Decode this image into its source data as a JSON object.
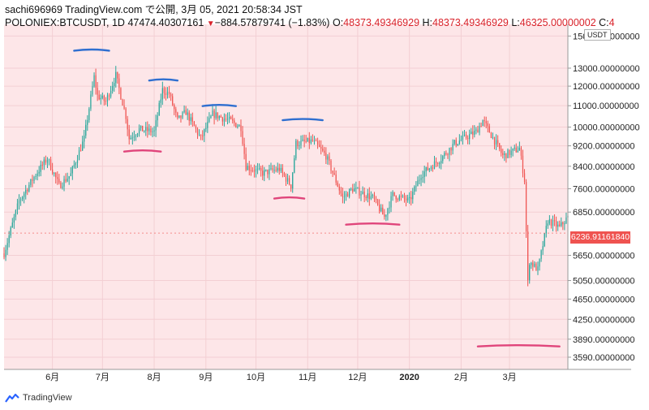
{
  "header": {
    "line1": "sachi696969 TradingView.com で公開, 3月 05, 2021 20:58:34 JST",
    "symbol": "POLONIEX:BTCUSDT, 1D",
    "last": "47474.40307161",
    "change": "−884.57879741 (−1.83%)",
    "open_label": "O:",
    "open": "48373.49346929",
    "high_label": "H:",
    "high": "48373.49346929",
    "low_label": "L:",
    "low": "46325.00000002",
    "close_label": "C:",
    "close": "4"
  },
  "currency": "USDT",
  "price_tag": "6236.91161840",
  "footer": {
    "brand": "TradingView"
  },
  "colors": {
    "up": "#26a69a",
    "down": "#ef5350",
    "resistance": "#2f6fd0",
    "support": "#e0457b",
    "background": "#fde6e8"
  },
  "chart_data": {
    "type": "candlestick",
    "y_scale": "log",
    "ylim": [
      3400,
      15800
    ],
    "y_ticks": [
      {
        "v": 15000,
        "label": "15000.00000000"
      },
      {
        "v": 13000,
        "label": "13000.00000000"
      },
      {
        "v": 12000,
        "label": "12000.00000000"
      },
      {
        "v": 11000,
        "label": "11000.00000000"
      },
      {
        "v": 10000,
        "label": "10000.00000000"
      },
      {
        "v": 9200,
        "label": "9200.00000000"
      },
      {
        "v": 8400,
        "label": "8400.00000000"
      },
      {
        "v": 7600,
        "label": "7600.00000000"
      },
      {
        "v": 6850,
        "label": "6850.00000000"
      },
      {
        "v": 5650,
        "label": "5650.00000000"
      },
      {
        "v": 5050,
        "label": "5050.00000000"
      },
      {
        "v": 4650,
        "label": "4650.00000000"
      },
      {
        "v": 4250,
        "label": "4250.00000000"
      },
      {
        "v": 3890,
        "label": "3890.00000000"
      },
      {
        "v": 3590,
        "label": "3590.00000000"
      }
    ],
    "x_range": [
      "2019-05-03",
      "2020-04-05"
    ],
    "x_ticks": [
      {
        "date": "2019-06-01",
        "label": "6月"
      },
      {
        "date": "2019-07-01",
        "label": "7月"
      },
      {
        "date": "2019-08-01",
        "label": "8月"
      },
      {
        "date": "2019-09-01",
        "label": "9月"
      },
      {
        "date": "2019-10-01",
        "label": "10月"
      },
      {
        "date": "2019-11-01",
        "label": "11月"
      },
      {
        "date": "2019-12-01",
        "label": "12月"
      },
      {
        "date": "2020-01-01",
        "label": "2020",
        "bold": true
      },
      {
        "date": "2020-02-01",
        "label": "2月"
      },
      {
        "date": "2020-03-01",
        "label": "3月"
      }
    ],
    "price_path": [
      [
        "2019-05-03",
        5700
      ],
      [
        "2019-05-12",
        7200
      ],
      [
        "2019-05-22",
        8100
      ],
      [
        "2019-05-29",
        8700
      ],
      [
        "2019-06-05",
        7700
      ],
      [
        "2019-06-12",
        8100
      ],
      [
        "2019-06-20",
        9500
      ],
      [
        "2019-06-26",
        12500
      ],
      [
        "2019-06-28",
        11500
      ],
      [
        "2019-07-03",
        11200
      ],
      [
        "2019-07-09",
        12600
      ],
      [
        "2019-07-15",
        10500
      ],
      [
        "2019-07-17",
        9500
      ],
      [
        "2019-07-23",
        9900
      ],
      [
        "2019-08-01",
        9800
      ],
      [
        "2019-08-06",
        11800
      ],
      [
        "2019-08-10",
        11600
      ],
      [
        "2019-08-15",
        10300
      ],
      [
        "2019-08-20",
        10700
      ],
      [
        "2019-08-29",
        9500
      ],
      [
        "2019-09-05",
        10600
      ],
      [
        "2019-09-15",
        10300
      ],
      [
        "2019-09-22",
        10000
      ],
      [
        "2019-09-25",
        8400
      ],
      [
        "2019-10-05",
        8150
      ],
      [
        "2019-10-15",
        8300
      ],
      [
        "2019-10-22",
        7700
      ],
      [
        "2019-10-25",
        9300
      ],
      [
        "2019-11-04",
        9400
      ],
      [
        "2019-11-12",
        8800
      ],
      [
        "2019-11-22",
        7300
      ],
      [
        "2019-11-28",
        7600
      ],
      [
        "2019-12-10",
        7300
      ],
      [
        "2019-12-17",
        6700
      ],
      [
        "2019-12-22",
        7400
      ],
      [
        "2020-01-01",
        7200
      ],
      [
        "2020-01-08",
        8100
      ],
      [
        "2020-01-20",
        8700
      ],
      [
        "2020-01-28",
        9300
      ],
      [
        "2020-02-10",
        9800
      ],
      [
        "2020-02-14",
        10300
      ],
      [
        "2020-02-18",
        9800
      ],
      [
        "2020-02-26",
        8800
      ],
      [
        "2020-03-07",
        9100
      ],
      [
        "2020-03-10",
        7900
      ],
      [
        "2020-03-12",
        5000
      ],
      [
        "2020-03-13",
        5500
      ],
      [
        "2020-03-18",
        5300
      ],
      [
        "2020-03-24",
        6600
      ],
      [
        "2020-03-31",
        6400
      ],
      [
        "2020-04-05",
        6700
      ]
    ],
    "annotations": [
      {
        "kind": "resistance",
        "from": "2019-06-14",
        "to": "2019-07-05",
        "value": 14100
      },
      {
        "kind": "resistance",
        "from": "2019-07-29",
        "to": "2019-08-15",
        "value": 12350
      },
      {
        "kind": "resistance",
        "from": "2019-08-30",
        "to": "2019-09-19",
        "value": 11020
      },
      {
        "kind": "resistance",
        "from": "2019-10-17",
        "to": "2019-11-10",
        "value": 10350
      },
      {
        "kind": "support",
        "from": "2019-07-14",
        "to": "2019-08-05",
        "value": 9000
      },
      {
        "kind": "support",
        "from": "2019-10-12",
        "to": "2019-10-30",
        "value": 7300
      },
      {
        "kind": "support",
        "from": "2019-11-24",
        "to": "2019-12-26",
        "value": 6500
      },
      {
        "kind": "support",
        "from": "2020-02-11",
        "to": "2020-03-31",
        "value": 3780
      }
    ],
    "last_price": 6236.9116184,
    "grid": true
  }
}
